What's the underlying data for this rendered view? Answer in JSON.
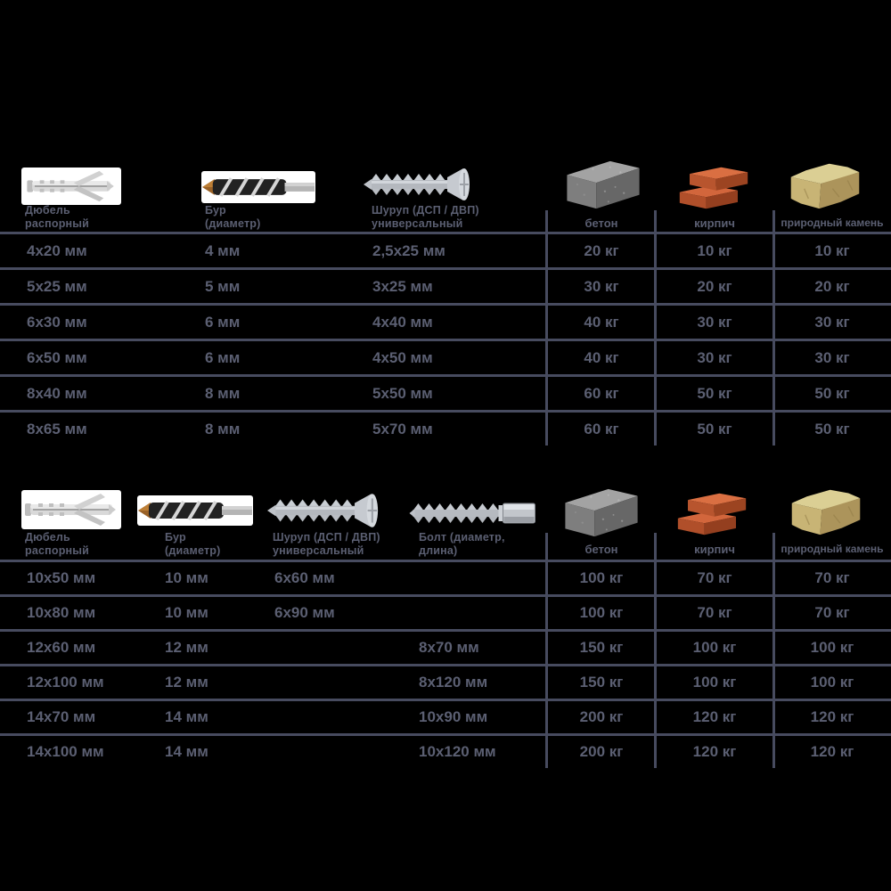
{
  "colors": {
    "background": "#000000",
    "text": "#5b5f72",
    "grid_line": "#474b5f",
    "brick_color": "#c95a33",
    "concrete_color": "#8a8a8a",
    "stone_color": "#cdbb7d"
  },
  "chart_data": [
    {
      "type": "table",
      "columns": [
        "Дюбель распорный",
        "Бур (диаметр)",
        "Шуруп (ДСП / ДВП) универсальный",
        "бетон",
        "кирпич",
        "природный камень"
      ],
      "rows": [
        [
          "4x20 мм",
          "4 мм",
          "2,5x25 мм",
          "20 кг",
          "10 кг",
          "10 кг"
        ],
        [
          "5x25 мм",
          "5 мм",
          "3x25 мм",
          "30 кг",
          "20 кг",
          "20 кг"
        ],
        [
          "6x30 мм",
          "6 мм",
          "4x40 мм",
          "40 кг",
          "30 кг",
          "30 кг"
        ],
        [
          "6x50 мм",
          "6 мм",
          "4x50 мм",
          "40 кг",
          "30 кг",
          "30 кг"
        ],
        [
          "8x40 мм",
          "8 мм",
          "5x50 мм",
          "60 кг",
          "50 кг",
          "50 кг"
        ],
        [
          "8x65 мм",
          "8 мм",
          "5x70 мм",
          "60 кг",
          "50 кг",
          "50 кг"
        ]
      ]
    },
    {
      "type": "table",
      "columns": [
        "Дюбель распорный",
        "Бур (диаметр)",
        "Шуруп (ДСП / ДВП) универсальный",
        "Болт (диаметр, длина)",
        "бетон",
        "кирпич",
        "природный камень"
      ],
      "rows": [
        [
          "10x50 мм",
          "10 мм",
          "6x60 мм",
          "",
          "100 кг",
          "70 кг",
          "70 кг"
        ],
        [
          "10x80 мм",
          "10 мм",
          "6x90 мм",
          "",
          "100 кг",
          "70 кг",
          "70 кг"
        ],
        [
          "12x60 мм",
          "12 мм",
          "",
          "8x70 мм",
          "150 кг",
          "100 кг",
          "100 кг"
        ],
        [
          "12x100 мм",
          "12 мм",
          "",
          "8x120 мм",
          "150 кг",
          "100 кг",
          "100 кг"
        ],
        [
          "14x70 мм",
          "14 мм",
          "",
          "10x90 мм",
          "200 кг",
          "120 кг",
          "120 кг"
        ],
        [
          "14x100 мм",
          "14 мм",
          "",
          "10x120 мм",
          "200 кг",
          "120 кг",
          "120 кг"
        ]
      ]
    }
  ]
}
